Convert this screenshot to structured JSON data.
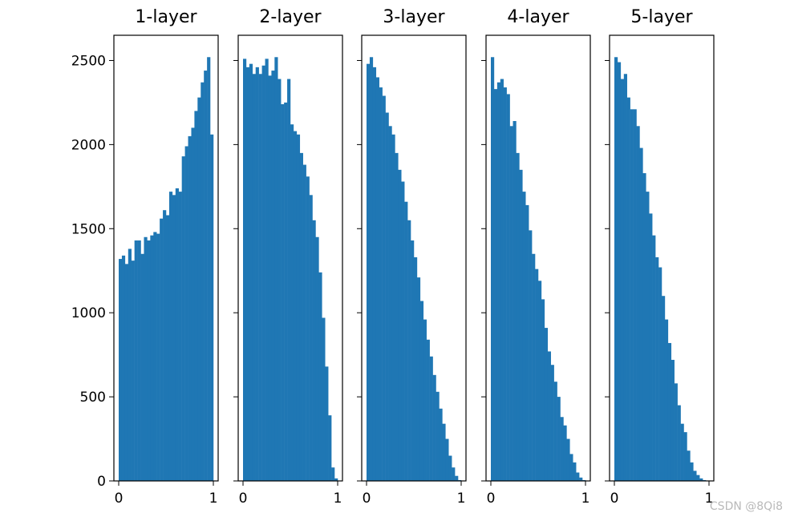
{
  "chart_data": {
    "type": "bar",
    "layout": "1x5 subplots, shared y-axis",
    "bar_color": "#1f77b4",
    "bins_per_histogram": 30,
    "bin_range": [
      0,
      1
    ],
    "xticks": [
      "0",
      "1"
    ],
    "yticks": [
      "0",
      "500",
      "1000",
      "1500",
      "2000",
      "2500"
    ],
    "ylim": [
      0,
      2650
    ],
    "grid": false,
    "subplots": [
      {
        "title": "1-layer",
        "values": [
          1320,
          1340,
          1290,
          1380,
          1310,
          1430,
          1430,
          1350,
          1450,
          1430,
          1460,
          1480,
          1470,
          1560,
          1610,
          1580,
          1720,
          1700,
          1740,
          1720,
          1930,
          1990,
          2050,
          2100,
          2200,
          2280,
          2370,
          2440,
          2520,
          2060
        ]
      },
      {
        "title": "2-layer",
        "values": [
          2510,
          2460,
          2480,
          2420,
          2460,
          2420,
          2470,
          2510,
          2410,
          2440,
          2520,
          2390,
          2240,
          2250,
          2390,
          2120,
          2080,
          2060,
          1950,
          1880,
          1810,
          1700,
          1550,
          1450,
          1240,
          970,
          680,
          390,
          80,
          15
        ]
      },
      {
        "title": "3-layer",
        "values": [
          2480,
          2520,
          2460,
          2400,
          2340,
          2290,
          2190,
          2110,
          2060,
          1950,
          1850,
          1780,
          1660,
          1550,
          1430,
          1330,
          1210,
          1070,
          960,
          840,
          740,
          630,
          530,
          430,
          340,
          250,
          150,
          80,
          30,
          5
        ]
      },
      {
        "title": "4-layer",
        "values": [
          2520,
          2330,
          2370,
          2390,
          2340,
          2300,
          2110,
          2140,
          1950,
          1850,
          1720,
          1640,
          1490,
          1350,
          1260,
          1190,
          1080,
          910,
          770,
          690,
          590,
          500,
          380,
          330,
          250,
          160,
          110,
          50,
          20,
          5
        ]
      },
      {
        "title": "5-layer",
        "values": [
          2520,
          2490,
          2390,
          2420,
          2280,
          2210,
          2210,
          2110,
          1980,
          1830,
          1720,
          1590,
          1460,
          1330,
          1270,
          1100,
          960,
          820,
          720,
          580,
          450,
          340,
          290,
          180,
          110,
          60,
          35,
          15,
          5,
          2
        ]
      }
    ]
  },
  "watermark": "CSDN @8Qi8"
}
